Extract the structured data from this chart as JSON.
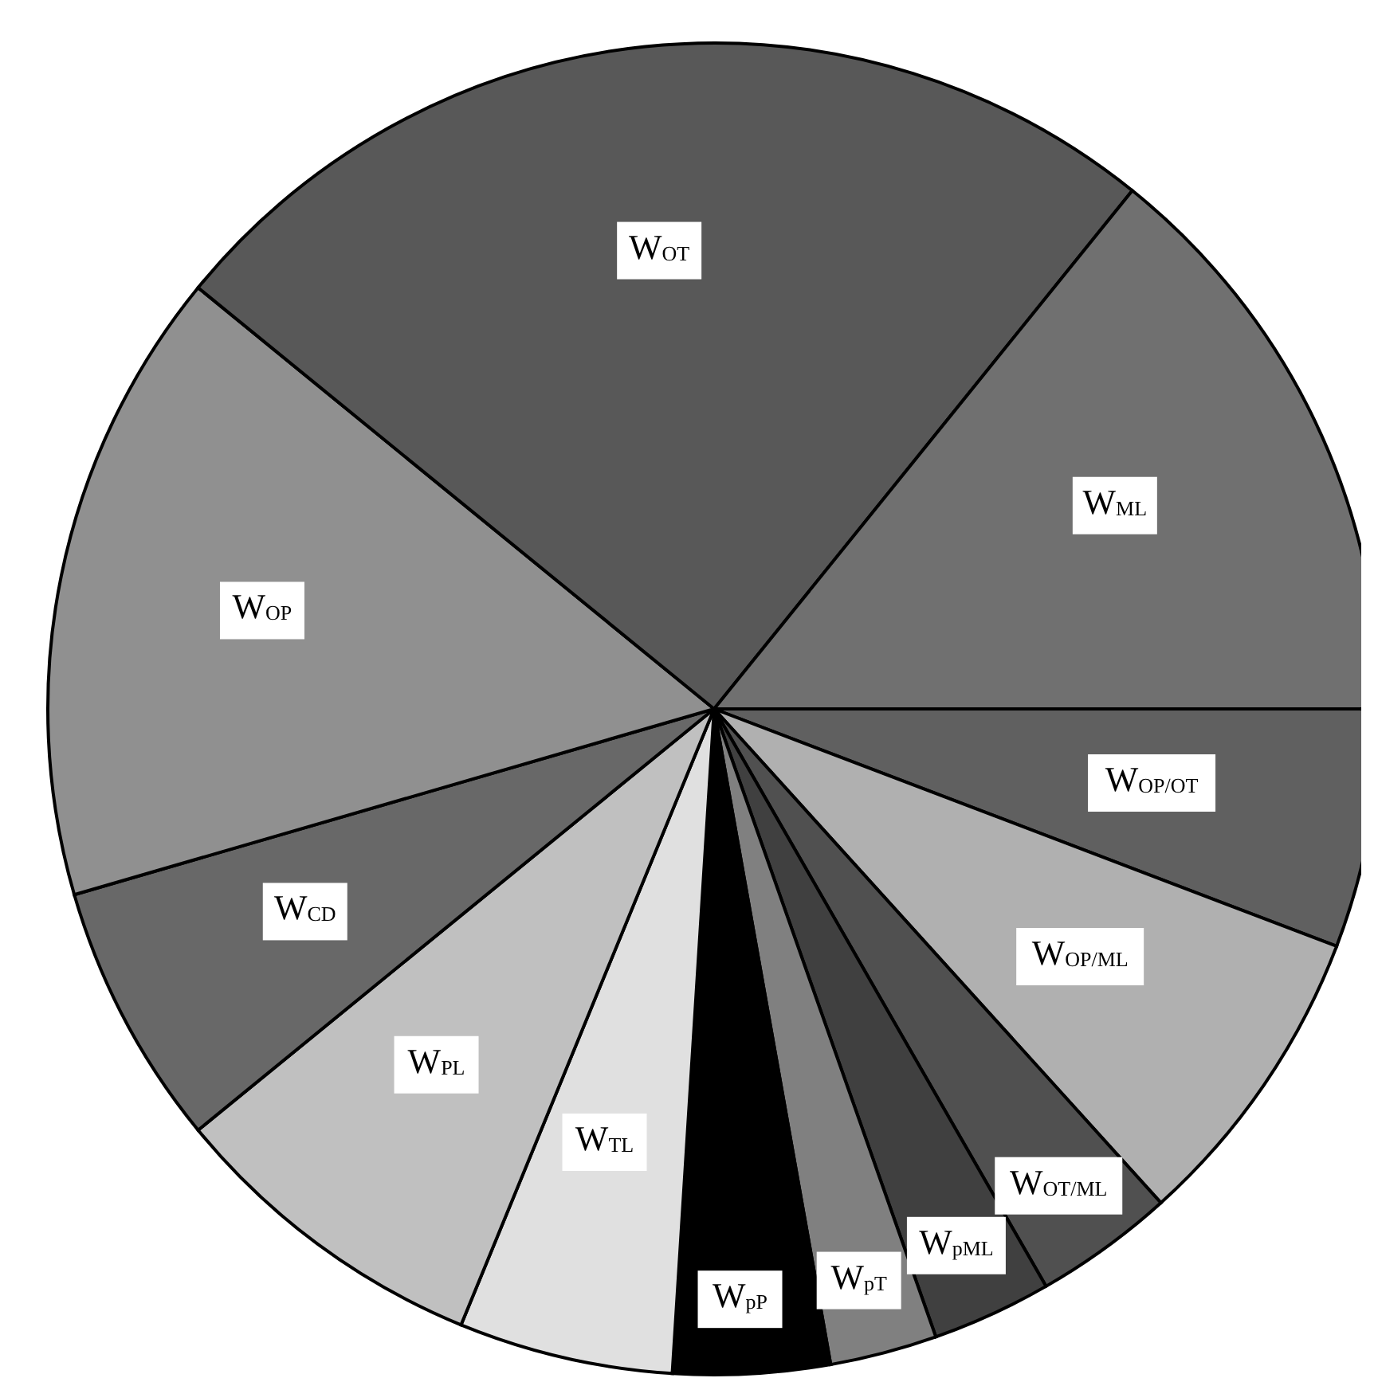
{
  "chart_data": {
    "type": "pie",
    "categories": [
      "W$_{OP/OT}$",
      "W$_{OP/ML}$",
      "W$_{OT/ML}$",
      "W$_{pML}$",
      "W$_{pT}$",
      "W$_{pP}$",
      "W$_{TL}$",
      "W$_{PL}$",
      "W$_{CD}$",
      "W$_{OP}$",
      "W$_{OT}$",
      "W$_{ML}$"
    ],
    "values": [
      5.8,
      7.5,
      3.4,
      2.9,
      2.6,
      3.8,
      5.2,
      7.9,
      6.4,
      15.4,
      24.9,
      14.2
    ],
    "colors": [
      "#606060",
      "#b0b0b0",
      "#505050",
      "#404040",
      "#808080",
      "#000000",
      "#e0e0e0",
      "#c0c0c0",
      "#686868",
      "#909090",
      "#585858",
      "#707070"
    ]
  }
}
